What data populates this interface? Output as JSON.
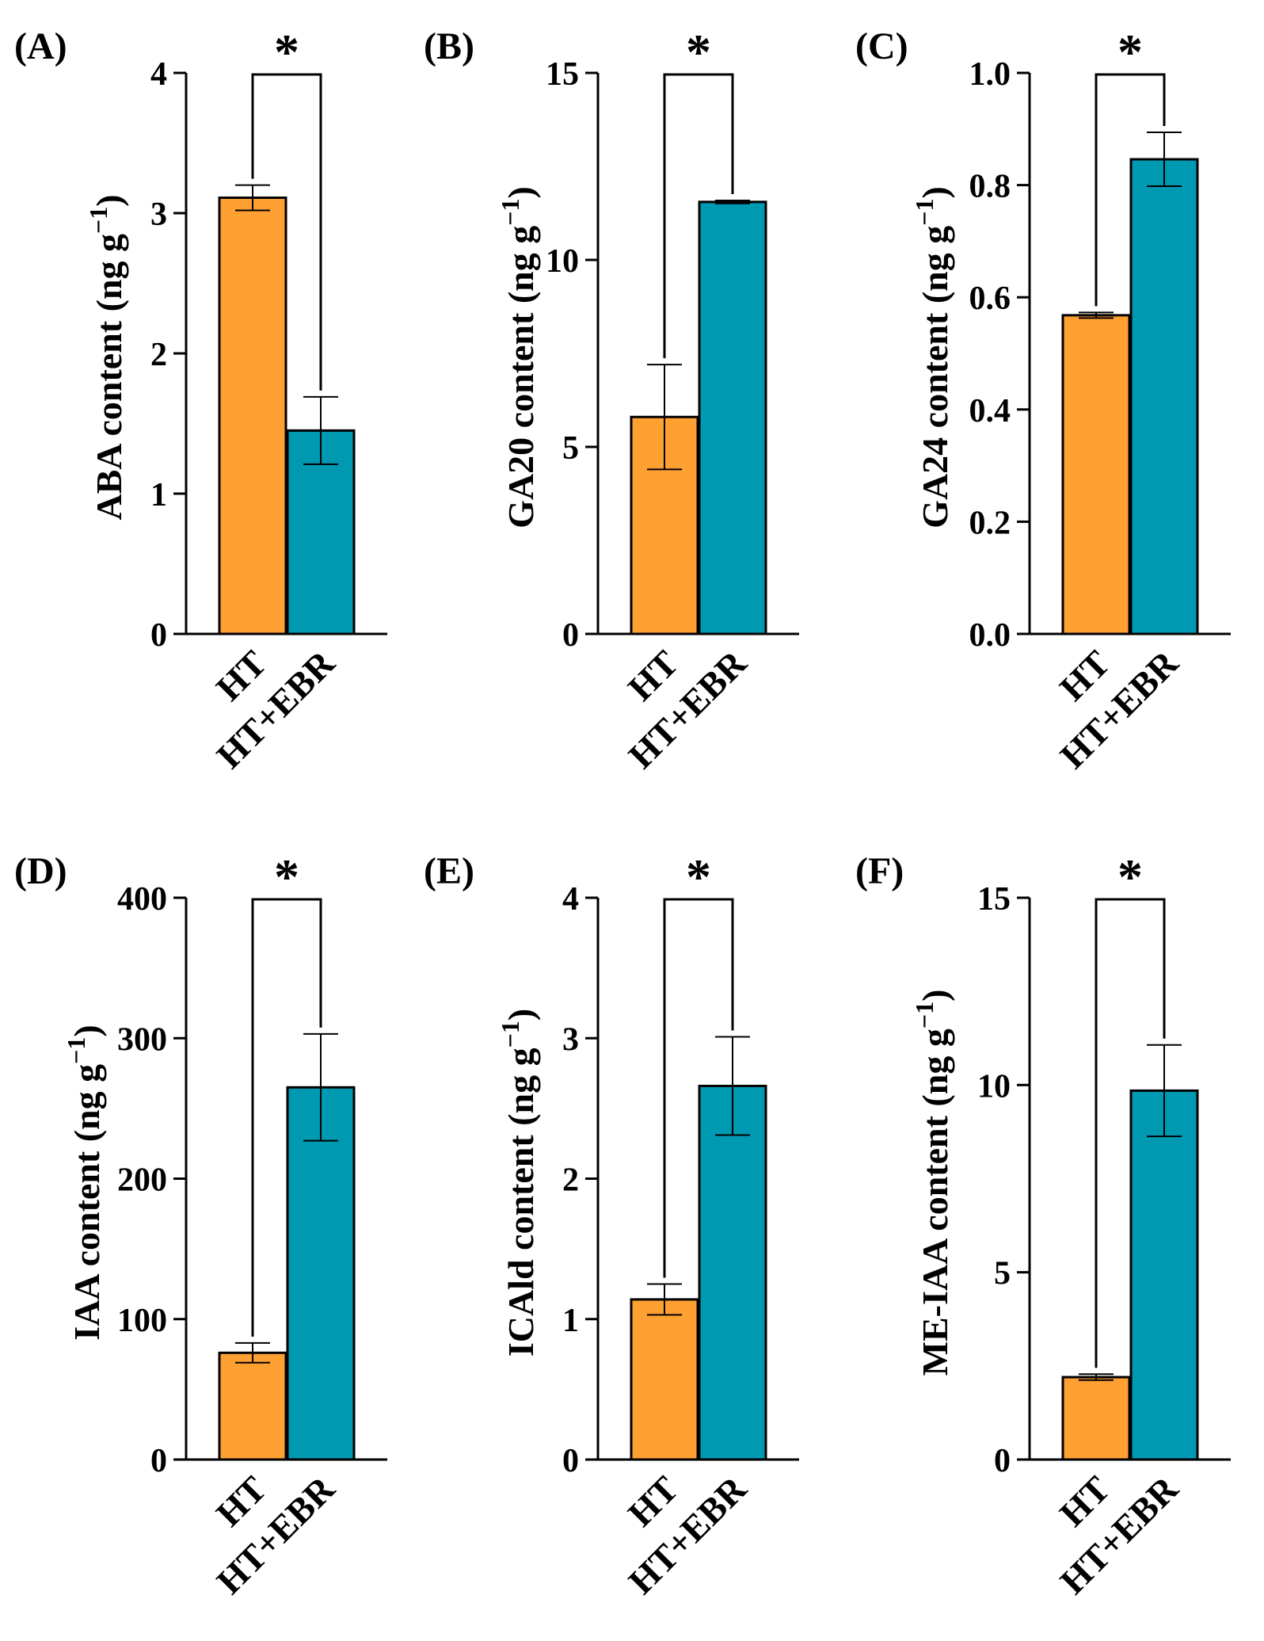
{
  "colors": {
    "HT": "#FFA033",
    "HT+EBR": "#0099B2",
    "axis": "#000000"
  },
  "chart_data": [
    {
      "panel": "(A)",
      "type": "bar",
      "ylabel": "ABA content",
      "unit": "(ng g",
      "unit_sup": "−1",
      "unit_close": ")",
      "categories": [
        "HT",
        "HT+EBR"
      ],
      "values": [
        3.11,
        1.45
      ],
      "errors": [
        0.09,
        0.24
      ],
      "ylim": [
        0,
        4
      ],
      "ticks": [
        "0",
        "1",
        "2",
        "3",
        "4"
      ],
      "significance": "*"
    },
    {
      "panel": "(B)",
      "type": "bar",
      "ylabel": "GA20 content",
      "unit": "(ng g",
      "unit_sup": "−1",
      "unit_close": ")",
      "categories": [
        "HT",
        "HT+EBR"
      ],
      "values": [
        5.8,
        11.55
      ],
      "errors": [
        1.4,
        0.04
      ],
      "ylim": [
        0,
        15
      ],
      "ticks": [
        "0",
        "5",
        "10",
        "15"
      ],
      "significance": "*"
    },
    {
      "panel": "(C)",
      "type": "bar",
      "ylabel": "GA24 content",
      "unit": "(ng g",
      "unit_sup": "−1",
      "unit_close": ")",
      "categories": [
        "HT",
        "HT+EBR"
      ],
      "values": [
        0.568,
        0.846
      ],
      "errors": [
        0.005,
        0.048
      ],
      "ylim": [
        0,
        1.0
      ],
      "ticks": [
        "0.0",
        "0.2",
        "0.4",
        "0.6",
        "0.8",
        "1.0"
      ],
      "significance": "*"
    },
    {
      "panel": "(D)",
      "type": "bar",
      "ylabel": "IAA content",
      "unit": "(ng g",
      "unit_sup": "−1",
      "unit_close": ")",
      "categories": [
        "HT",
        "HT+EBR"
      ],
      "values": [
        76,
        265
      ],
      "errors": [
        7,
        38
      ],
      "ylim": [
        0,
        400
      ],
      "ticks": [
        "0",
        "100",
        "200",
        "300",
        "400"
      ],
      "significance": "*"
    },
    {
      "panel": "(E)",
      "type": "bar",
      "ylabel": "ICAld content",
      "unit": "(ng g",
      "unit_sup": "−1",
      "unit_close": ")",
      "categories": [
        "HT",
        "HT+EBR"
      ],
      "values": [
        1.14,
        2.66
      ],
      "errors": [
        0.11,
        0.35
      ],
      "ylim": [
        0,
        4
      ],
      "ticks": [
        "0",
        "1",
        "2",
        "3",
        "4"
      ],
      "significance": "*"
    },
    {
      "panel": "(F)",
      "type": "bar",
      "ylabel": "ME-IAA content",
      "unit": "(ng g",
      "unit_sup": "−1",
      "unit_close": ")",
      "categories": [
        "HT",
        "HT+EBR"
      ],
      "values": [
        2.2,
        9.85
      ],
      "errors": [
        0.08,
        1.22
      ],
      "ylim": [
        0,
        15
      ],
      "ticks": [
        "0",
        "5",
        "10",
        "15"
      ],
      "significance": "*"
    }
  ]
}
